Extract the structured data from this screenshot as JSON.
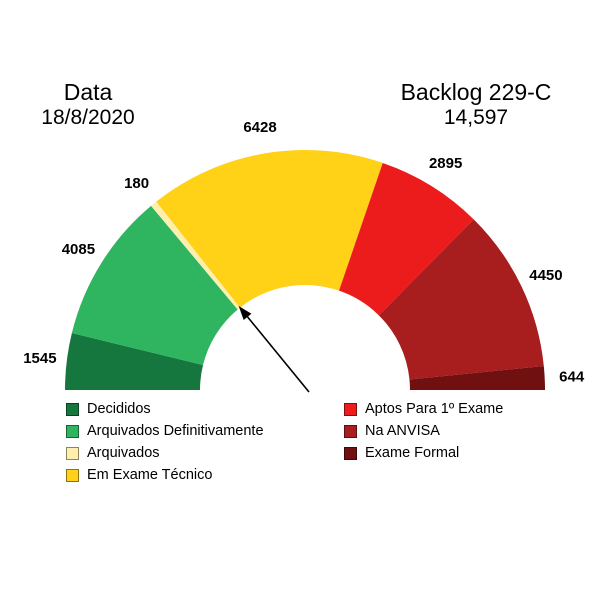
{
  "header": {
    "left_title": "Data",
    "left_subtitle": "18/8/2020",
    "right_title": "Backlog 229-C",
    "right_subtitle": "14,597"
  },
  "chart_data": {
    "type": "pie",
    "variant": "half-donut-gauge",
    "title": "Backlog 229-C",
    "date": "18/8/2020",
    "total_label": "14,597",
    "direction": "left-to-right over the top, 180 degrees total",
    "items": [
      {
        "label": "Decididos",
        "value": 1545,
        "color": "#15763E"
      },
      {
        "label": "Arquivados Definitivamente",
        "value": 4085,
        "color": "#2FB45F"
      },
      {
        "label": "Arquivados",
        "value": 180,
        "color": "#FFEFAE"
      },
      {
        "label": "Em Exame Técnico",
        "value": 6428,
        "color": "#FFD117"
      },
      {
        "label": "Aptos Para 1º Exame",
        "value": 2895,
        "color": "#EC1C1C"
      },
      {
        "label": "Na ANVISA",
        "value": 4450,
        "color": "#A81D1D"
      },
      {
        "label": "Exame Formal",
        "value": 644,
        "color": "#701010"
      }
    ],
    "annotation": {
      "type": "arrow",
      "points_to_boundary_after": "Arquivados"
    },
    "legend_position": "bottom",
    "legend_columns": {
      "left_item_indexes": [
        0,
        1,
        2,
        3
      ],
      "right_item_indexes": [
        4,
        5,
        6
      ]
    }
  }
}
